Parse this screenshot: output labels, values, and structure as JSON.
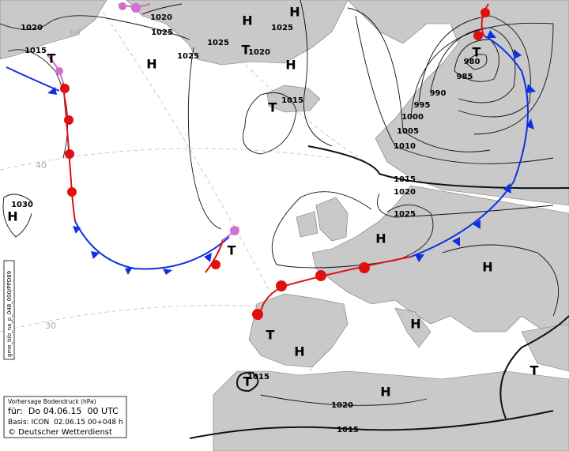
{
  "pressure_labels": [
    "1020",
    "1025",
    "1020",
    "1015",
    "1025",
    "1025",
    "1020",
    "1025",
    "1015",
    "980",
    "985",
    "990",
    "995",
    "1000",
    "1005",
    "1010",
    "1015",
    "1020",
    "1025",
    "1030",
    "1015",
    "1020",
    "1015"
  ],
  "highs": [
    "H",
    "H",
    "H",
    "H",
    "H",
    "H",
    "H",
    "H",
    "H",
    "H"
  ],
  "lows": [
    "T",
    "T",
    "T",
    "T",
    "T",
    "T",
    "T",
    "T"
  ],
  "latitude_labels": [
    "60",
    "40",
    "30"
  ],
  "legend": {
    "title": "Vorhersage Bodendruck (hPa)",
    "valid": "für:  Do 04.06.15  00 UTC",
    "basis": "Basis: ICON  02.06.15 00+048 h",
    "credit": "© Deutscher Wetterdienst"
  },
  "side_label": "gme_tiib_na_p_048_000/PPD89"
}
